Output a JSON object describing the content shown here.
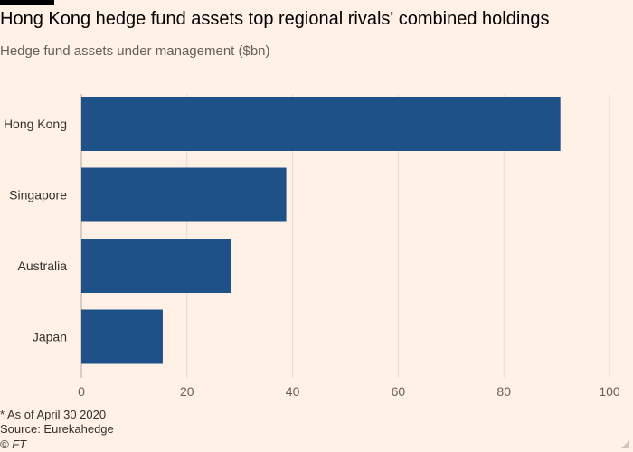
{
  "header": {
    "title": "Hong Kong hedge fund assets top regional rivals' combined holdings",
    "subtitle": "Hedge fund assets under management ($bn)"
  },
  "footer": {
    "note": "* As of April 30 2020",
    "source": "Source: Eurekahedge",
    "credit": "© FT"
  },
  "colors": {
    "background": "#fff1e5",
    "bar": "#1f5189",
    "grid": "#e6d9ce",
    "axis_text": "#66605c"
  },
  "chart_data": {
    "type": "bar",
    "orientation": "horizontal",
    "categories": [
      "Hong Kong",
      "Singapore",
      "Australia",
      "Japan"
    ],
    "values": [
      90.7,
      38.8,
      28.4,
      15.4
    ],
    "title": "Hong Kong hedge fund assets top regional rivals' combined holdings",
    "subtitle": "Hedge fund assets under management ($bn)",
    "xlabel": "",
    "ylabel": "",
    "xlim": [
      0,
      100
    ],
    "xticks": [
      0,
      20,
      40,
      60,
      80,
      100
    ],
    "grid": true,
    "legend": "none"
  }
}
